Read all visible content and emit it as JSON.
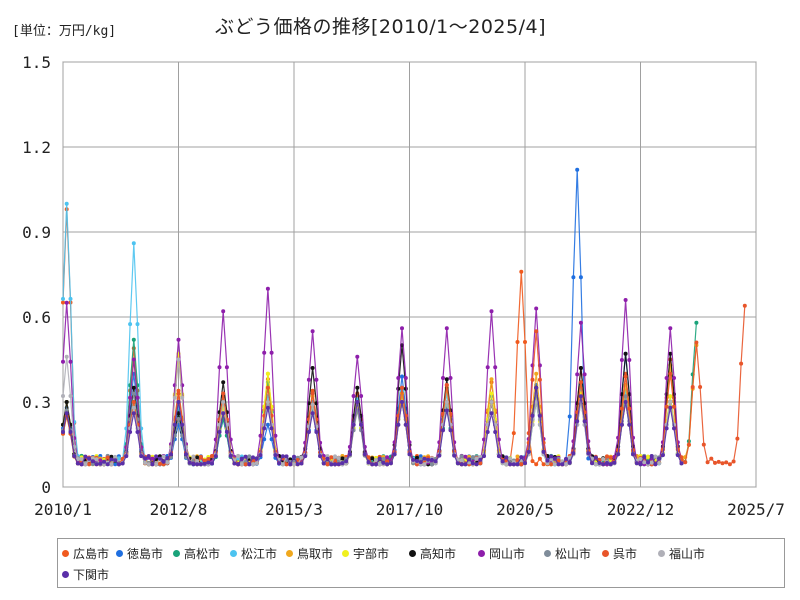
{
  "chart_data": {
    "type": "line",
    "title": "ぶどう価格の推移[2010/1～2025/4]",
    "unit_label": "[単位：万円/kg]",
    "xlabel": "",
    "ylabel": "",
    "x_range": [
      "2010-01",
      "2025-07"
    ],
    "ylim": [
      0,
      1.5
    ],
    "y_ticks": [
      "0",
      "0.3",
      "0.6",
      "0.9",
      "1.2",
      "1.5"
    ],
    "x_ticks": [
      "2010/1",
      "2012/8",
      "2015/3",
      "2017/10",
      "2020/5",
      "2022/12",
      "2025/7"
    ],
    "grid": true,
    "legend_position": "bottom",
    "series": [
      {
        "name": "広島市",
        "color": "#f05a1e",
        "peaks": [
          {
            "date": "2010-02",
            "value": 0.98
          },
          {
            "date": "2011-08",
            "value": 0.49
          },
          {
            "date": "2012-08",
            "value": 0.34
          },
          {
            "date": "2013-08",
            "value": 0.32
          },
          {
            "date": "2014-08",
            "value": 0.38
          },
          {
            "date": "2015-08",
            "value": 0.34
          },
          {
            "date": "2016-08",
            "value": 0.33
          },
          {
            "date": "2017-08",
            "value": 0.35
          },
          {
            "date": "2018-08",
            "value": 0.36
          },
          {
            "date": "2019-08",
            "value": 0.37
          },
          {
            "date": "2020-04",
            "value": 0.76
          },
          {
            "date": "2021-08",
            "value": 0.42
          },
          {
            "date": "2022-08",
            "value": 0.4
          },
          {
            "date": "2023-08",
            "value": 0.45
          }
        ]
      },
      {
        "name": "徳島市",
        "color": "#1f6fe0",
        "peaks": [
          {
            "date": "2010-02",
            "value": 0.28
          },
          {
            "date": "2011-08",
            "value": 0.4
          },
          {
            "date": "2012-08",
            "value": 0.22
          },
          {
            "date": "2013-08",
            "value": 0.24
          },
          {
            "date": "2014-08",
            "value": 0.22
          },
          {
            "date": "2015-08",
            "value": 0.27
          },
          {
            "date": "2016-08",
            "value": 0.3
          },
          {
            "date": "2017-08",
            "value": 0.39
          },
          {
            "date": "2018-08",
            "value": 0.3
          },
          {
            "date": "2019-08",
            "value": 0.32
          },
          {
            "date": "2020-08",
            "value": 0.36
          },
          {
            "date": "2021-07",
            "value": 1.12
          },
          {
            "date": "2022-08",
            "value": 0.47
          },
          {
            "date": "2023-08",
            "value": 0.3
          }
        ]
      },
      {
        "name": "高松市",
        "color": "#1aa37a",
        "peaks": [
          {
            "date": "2010-02",
            "value": 0.3
          },
          {
            "date": "2011-08",
            "value": 0.52
          },
          {
            "date": "2012-08",
            "value": 0.28
          },
          {
            "date": "2013-08",
            "value": 0.24
          },
          {
            "date": "2014-08",
            "value": 0.37
          },
          {
            "date": "2015-08",
            "value": 0.3
          },
          {
            "date": "2016-08",
            "value": 0.28
          },
          {
            "date": "2017-08",
            "value": 0.33
          },
          {
            "date": "2018-08",
            "value": 0.28
          },
          {
            "date": "2019-08",
            "value": 0.3
          },
          {
            "date": "2020-08",
            "value": 0.3
          },
          {
            "date": "2021-08",
            "value": 0.36
          },
          {
            "date": "2022-08",
            "value": 0.3
          },
          {
            "date": "2023-08",
            "value": 0.3
          },
          {
            "date": "2024-03",
            "value": 0.58
          }
        ]
      },
      {
        "name": "松江市",
        "color": "#4cc3f0",
        "peaks": [
          {
            "date": "2010-02",
            "value": 1.0
          },
          {
            "date": "2011-08",
            "value": 0.86
          },
          {
            "date": "2012-08",
            "value": 0.29
          },
          {
            "date": "2013-08",
            "value": 0.3
          },
          {
            "date": "2014-08",
            "value": 0.32
          },
          {
            "date": "2015-08",
            "value": 0.3
          },
          {
            "date": "2016-08",
            "value": 0.31
          },
          {
            "date": "2017-08",
            "value": 0.34
          },
          {
            "date": "2018-08",
            "value": 0.33
          },
          {
            "date": "2019-08",
            "value": 0.3
          },
          {
            "date": "2020-08",
            "value": 0.35
          },
          {
            "date": "2021-08",
            "value": 0.36
          },
          {
            "date": "2022-08",
            "value": 0.34
          },
          {
            "date": "2023-08",
            "value": 0.32
          }
        ]
      },
      {
        "name": "鳥取市",
        "color": "#f0a81e",
        "peaks": [
          {
            "date": "2010-02",
            "value": 0.3
          },
          {
            "date": "2011-08",
            "value": 0.45
          },
          {
            "date": "2012-08",
            "value": 0.46
          },
          {
            "date": "2013-08",
            "value": 0.3
          },
          {
            "date": "2014-08",
            "value": 0.4
          },
          {
            "date": "2015-08",
            "value": 0.32
          },
          {
            "date": "2016-08",
            "value": 0.3
          },
          {
            "date": "2017-08",
            "value": 0.33
          },
          {
            "date": "2018-08",
            "value": 0.35
          },
          {
            "date": "2019-08",
            "value": 0.38
          },
          {
            "date": "2020-08",
            "value": 0.4
          },
          {
            "date": "2021-08",
            "value": 0.37
          },
          {
            "date": "2022-08",
            "value": 0.36
          },
          {
            "date": "2023-08",
            "value": 0.43
          },
          {
            "date": "2024-03",
            "value": 0.5
          }
        ]
      },
      {
        "name": "宇部市",
        "color": "#f0f01e",
        "peaks": [
          {
            "date": "2010-02",
            "value": 0.25
          },
          {
            "date": "2011-08",
            "value": 0.3
          },
          {
            "date": "2012-08",
            "value": 0.47
          },
          {
            "date": "2013-08",
            "value": 0.28
          },
          {
            "date": "2014-08",
            "value": 0.4
          },
          {
            "date": "2015-08",
            "value": 0.29
          },
          {
            "date": "2016-08",
            "value": 0.28
          },
          {
            "date": "2017-08",
            "value": 0.3
          },
          {
            "date": "2018-08",
            "value": 0.3
          },
          {
            "date": "2019-08",
            "value": 0.33
          },
          {
            "date": "2020-08",
            "value": 0.32
          },
          {
            "date": "2021-08",
            "value": 0.33
          },
          {
            "date": "2022-08",
            "value": 0.3
          },
          {
            "date": "2023-08",
            "value": 0.32
          }
        ]
      },
      {
        "name": "高知市",
        "color": "#111111",
        "peaks": [
          {
            "date": "2010-02",
            "value": 0.3
          },
          {
            "date": "2011-08",
            "value": 0.35
          },
          {
            "date": "2012-08",
            "value": 0.26
          },
          {
            "date": "2013-08",
            "value": 0.37
          },
          {
            "date": "2014-08",
            "value": 0.3
          },
          {
            "date": "2015-08",
            "value": 0.42
          },
          {
            "date": "2016-08",
            "value": 0.35
          },
          {
            "date": "2017-08",
            "value": 0.5
          },
          {
            "date": "2018-08",
            "value": 0.38
          },
          {
            "date": "2019-08",
            "value": 0.3
          },
          {
            "date": "2020-08",
            "value": 0.35
          },
          {
            "date": "2021-08",
            "value": 0.42
          },
          {
            "date": "2022-08",
            "value": 0.47
          },
          {
            "date": "2023-08",
            "value": 0.47
          }
        ]
      },
      {
        "name": "岡山市",
        "color": "#8e1eab",
        "peaks": [
          {
            "date": "2010-02",
            "value": 0.65
          },
          {
            "date": "2011-08",
            "value": 0.45
          },
          {
            "date": "2012-08",
            "value": 0.52
          },
          {
            "date": "2013-08",
            "value": 0.62
          },
          {
            "date": "2014-08",
            "value": 0.7
          },
          {
            "date": "2015-08",
            "value": 0.55
          },
          {
            "date": "2016-08",
            "value": 0.46
          },
          {
            "date": "2017-08",
            "value": 0.56
          },
          {
            "date": "2018-08",
            "value": 0.56
          },
          {
            "date": "2019-08",
            "value": 0.62
          },
          {
            "date": "2020-08",
            "value": 0.63
          },
          {
            "date": "2021-08",
            "value": 0.58
          },
          {
            "date": "2022-08",
            "value": 0.66
          },
          {
            "date": "2023-08",
            "value": 0.56
          }
        ]
      },
      {
        "name": "松山市",
        "color": "#7f8c9a",
        "peaks": [
          {
            "date": "2010-02",
            "value": 0.27
          },
          {
            "date": "2011-08",
            "value": 0.33
          },
          {
            "date": "2012-08",
            "value": 0.24
          },
          {
            "date": "2013-08",
            "value": 0.26
          },
          {
            "date": "2014-08",
            "value": 0.3
          },
          {
            "date": "2015-08",
            "value": 0.3
          },
          {
            "date": "2016-08",
            "value": 0.27
          },
          {
            "date": "2017-08",
            "value": 0.3
          },
          {
            "date": "2018-08",
            "value": 0.3
          },
          {
            "date": "2019-08",
            "value": 0.3
          },
          {
            "date": "2020-08",
            "value": 0.33
          },
          {
            "date": "2021-08",
            "value": 0.3
          },
          {
            "date": "2022-08",
            "value": 0.32
          },
          {
            "date": "2023-08",
            "value": 0.3
          }
        ]
      },
      {
        "name": "呉市",
        "color": "#e8552a",
        "peaks": [
          {
            "date": "2010-02",
            "value": 0.25
          },
          {
            "date": "2011-08",
            "value": 0.3
          },
          {
            "date": "2012-08",
            "value": 0.33
          },
          {
            "date": "2013-08",
            "value": 0.33
          },
          {
            "date": "2014-08",
            "value": 0.35
          },
          {
            "date": "2015-08",
            "value": 0.33
          },
          {
            "date": "2016-08",
            "value": 0.3
          },
          {
            "date": "2017-08",
            "value": 0.35
          },
          {
            "date": "2018-08",
            "value": 0.36
          },
          {
            "date": "2019-08",
            "value": 0.3
          },
          {
            "date": "2020-08",
            "value": 0.55
          },
          {
            "date": "2021-08",
            "value": 0.37
          },
          {
            "date": "2022-08",
            "value": 0.39
          },
          {
            "date": "2023-08",
            "value": 0.4
          },
          {
            "date": "2024-03",
            "value": 0.51
          },
          {
            "date": "2025-04",
            "value": 0.64
          }
        ]
      },
      {
        "name": "福山市",
        "color": "#b0b0b8",
        "peaks": [
          {
            "date": "2010-02",
            "value": 0.46
          },
          {
            "date": "2011-08",
            "value": 0.28
          },
          {
            "date": "2012-08",
            "value": 0.45
          },
          {
            "date": "2013-08",
            "value": 0.3
          },
          {
            "date": "2014-08",
            "value": 0.3
          },
          {
            "date": "2015-08",
            "value": 0.29
          },
          {
            "date": "2016-08",
            "value": 0.3
          },
          {
            "date": "2017-08",
            "value": 0.3
          },
          {
            "date": "2018-08",
            "value": 0.3
          },
          {
            "date": "2019-08",
            "value": 0.3
          },
          {
            "date": "2020-08",
            "value": 0.3
          },
          {
            "date": "2021-08",
            "value": 0.3
          },
          {
            "date": "2022-08",
            "value": 0.3
          },
          {
            "date": "2023-08",
            "value": 0.3
          }
        ]
      },
      {
        "name": "下関市",
        "color": "#5a2fa8",
        "peaks": [
          {
            "date": "2010-02",
            "value": 0.26
          },
          {
            "date": "2011-08",
            "value": 0.26
          },
          {
            "date": "2012-08",
            "value": 0.3
          },
          {
            "date": "2013-08",
            "value": 0.26
          },
          {
            "date": "2014-08",
            "value": 0.28
          },
          {
            "date": "2015-08",
            "value": 0.26
          },
          {
            "date": "2016-08",
            "value": 0.3
          },
          {
            "date": "2017-08",
            "value": 0.3
          },
          {
            "date": "2018-08",
            "value": 0.27
          },
          {
            "date": "2019-08",
            "value": 0.26
          },
          {
            "date": "2020-08",
            "value": 0.35
          },
          {
            "date": "2021-08",
            "value": 0.32
          },
          {
            "date": "2022-08",
            "value": 0.3
          },
          {
            "date": "2023-08",
            "value": 0.28
          }
        ]
      }
    ]
  }
}
